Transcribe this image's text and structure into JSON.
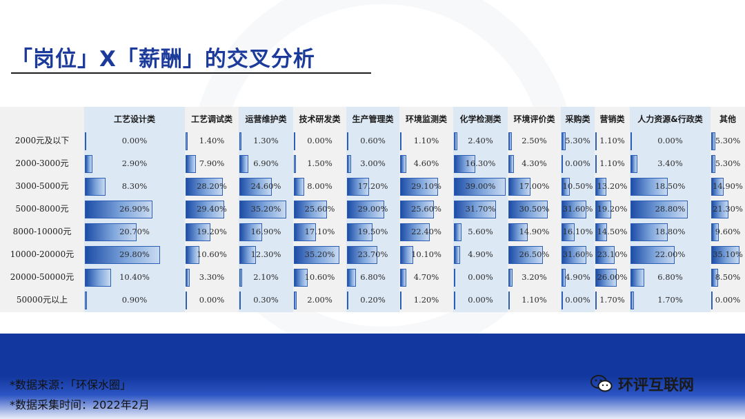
{
  "page": {
    "title": "「岗位」X「薪酬」的交叉分析",
    "source_line": "*数据来源：「环保水圈」",
    "date_line": "*数据采集时间：2022年2月",
    "brand": "环评互联网"
  },
  "colors": {
    "title": "#1b3a9a",
    "footer": "#12379e",
    "highlight_column": "#dde8f5",
    "bar_dark": "#1d4da7",
    "bar_light": "#c9daf1"
  },
  "chart_data": {
    "type": "table",
    "title": "",
    "unit": "%",
    "columns": [
      "工艺设计类",
      "工艺调试类",
      "运营维护类",
      "技术研发类",
      "生产管理类",
      "环境监测类",
      "化学检测类",
      "环境评价类",
      "采购类",
      "营销类",
      "人力资源&行政类",
      "其他"
    ],
    "highlighted_columns": [
      "工艺设计类",
      "运营维护类",
      "生产管理类",
      "化学检测类",
      "采购类",
      "人力资源&行政类"
    ],
    "rows": [
      "2000元及以下",
      "2000-3000元",
      "3000-5000元",
      "5000-8000元",
      "8000-10000元",
      "10000-20000元",
      "20000-50000元",
      "50000元以上"
    ],
    "values": [
      [
        0.0,
        1.4,
        1.3,
        0.0,
        0.6,
        1.1,
        2.4,
        2.5,
        5.3,
        1.1,
        0.0,
        5.3
      ],
      [
        2.9,
        7.9,
        6.9,
        1.5,
        3.0,
        4.6,
        16.3,
        4.3,
        0.0,
        1.1,
        3.4,
        5.3
      ],
      [
        8.3,
        28.2,
        24.6,
        8.0,
        17.2,
        29.1,
        39.0,
        17.0,
        10.5,
        13.2,
        18.5,
        14.9
      ],
      [
        26.9,
        29.4,
        35.2,
        25.6,
        29.0,
        25.6,
        31.7,
        30.5,
        31.6,
        19.2,
        28.8,
        21.3
      ],
      [
        20.7,
        19.2,
        16.9,
        17.1,
        19.5,
        22.4,
        5.6,
        14.9,
        16.1,
        14.5,
        18.8,
        9.6
      ],
      [
        29.8,
        10.6,
        12.3,
        35.2,
        23.7,
        10.1,
        4.9,
        26.5,
        31.6,
        23.1,
        22.0,
        35.1
      ],
      [
        10.4,
        3.3,
        2.1,
        10.6,
        6.8,
        4.7,
        0.0,
        3.2,
        4.9,
        26.0,
        6.8,
        8.5
      ],
      [
        0.9,
        0.0,
        0.3,
        2.0,
        0.2,
        1.2,
        0.0,
        1.1,
        0.0,
        1.7,
        1.7,
        0.0
      ]
    ],
    "labels": [
      [
        "0.00%",
        "1.40%",
        "1.30%",
        "0.00%",
        "0.60%",
        "1.10%",
        "2.40%",
        "2.50%",
        "5.30%",
        "1.10%",
        "0.00%",
        "5.30%"
      ],
      [
        "2.90%",
        "7.90%",
        "6.90%",
        "1.50%",
        "3.00%",
        "4.60%",
        "16.30%",
        "4.30%",
        "0.00%",
        "1.10%",
        "3.40%",
        "5.30%"
      ],
      [
        "8.30%",
        "28.20%",
        "24.60%",
        "8.00%",
        "17.20%",
        "29.10%",
        "39.00%",
        "17.00%",
        "10.50%",
        "13.20%",
        "18.50%",
        "14.90%"
      ],
      [
        "26.90%",
        "29.40%",
        "35.20%",
        "25.60%",
        "29.00%",
        "25.60%",
        "31.70%",
        "30.50%",
        "31.60%",
        "19.20%",
        "28.80%",
        "21.30%"
      ],
      [
        "20.70%",
        "19.20%",
        "16.90%",
        "17.10%",
        "19.50%",
        "22.40%",
        "5.60%",
        "14.90%",
        "16.10%",
        "14.50%",
        "18.80%",
        "9.60%"
      ],
      [
        "29.80%",
        "10.60%",
        "12.30%",
        "35.20%",
        "23.70%",
        "10.10%",
        "4.90%",
        "26.50%",
        "31.60%",
        "23.10%",
        "22.00%",
        "35.10%"
      ],
      [
        "10.40%",
        "3.30%",
        "2.10%",
        "10.60%",
        "6.80%",
        "4.70%",
        "0.00%",
        "3.20%",
        "4.90%",
        "26.00%",
        "6.80%",
        "8.50%"
      ],
      [
        "0.90%",
        "0.00%",
        "0.30%",
        "2.00%",
        "0.20%",
        "1.20%",
        "0.00%",
        "1.10%",
        "0.00%",
        "1.70%",
        "1.70%",
        "0.00%"
      ]
    ],
    "bar_scale_max": 39.0,
    "legend": "none",
    "grid": false
  }
}
